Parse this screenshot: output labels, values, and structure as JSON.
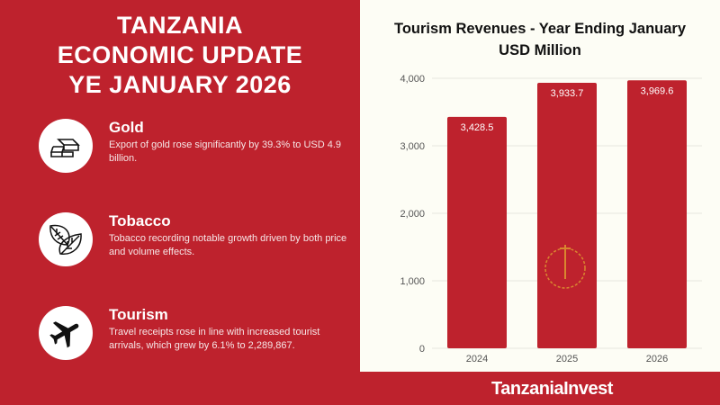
{
  "header": {
    "lines": [
      "TANZANIA",
      "ECONOMIC UPDATE",
      "YE JANUARY 2026"
    ]
  },
  "items": [
    {
      "icon": "gold-bars-icon",
      "title": "Gold",
      "text": "Export of gold rose significantly by 39.3% to USD 4.9 billion."
    },
    {
      "icon": "tobacco-leaves-icon",
      "title": "Tobacco",
      "text": "Tobacco recording notable growth driven by both price and volume effects."
    },
    {
      "icon": "airplane-icon",
      "title": "Tourism",
      "text": "Travel receipts rose in line with increased tourist arrivals, which grew by 6.1% to 2,289,867."
    }
  ],
  "chart_data": {
    "type": "bar",
    "title": "Tourism Revenues - Year Ending January",
    "subtitle": "USD Million",
    "categories": [
      "2024",
      "2025",
      "2026"
    ],
    "values": [
      3428.5,
      3933.7,
      3969.6
    ],
    "data_labels": [
      "3,428.5",
      "3,933.7",
      "3,969.6"
    ],
    "yticks": [
      "0",
      "1,000",
      "2,000",
      "3,000",
      "4,000"
    ],
    "ylim": [
      0,
      4000
    ],
    "grid": true,
    "bar_color": "#be222d",
    "background": "#fdfdf5"
  },
  "footer": {
    "brand": "TanzaniaInvest"
  },
  "colors": {
    "brand_red": "#be222d"
  }
}
